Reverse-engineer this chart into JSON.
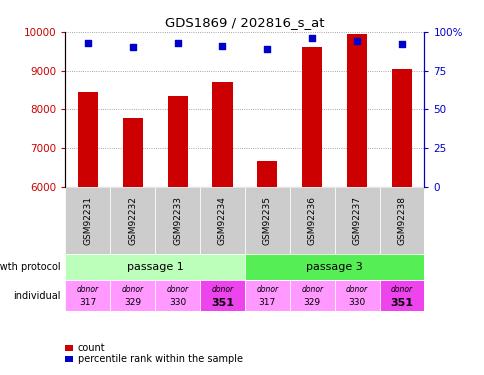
{
  "title": "GDS1869 / 202816_s_at",
  "samples": [
    "GSM92231",
    "GSM92232",
    "GSM92233",
    "GSM92234",
    "GSM92235",
    "GSM92236",
    "GSM92237",
    "GSM92238"
  ],
  "counts": [
    8450,
    7780,
    8350,
    8720,
    6670,
    9620,
    9950,
    9050
  ],
  "percentiles": [
    93,
    90,
    93,
    91,
    89,
    96,
    94,
    92
  ],
  "ylim_left": [
    6000,
    10000
  ],
  "ylim_right": [
    0,
    100
  ],
  "yticks_left": [
    6000,
    7000,
    8000,
    9000,
    10000
  ],
  "yticks_right": [
    0,
    25,
    50,
    75,
    100
  ],
  "individual": [
    "317",
    "329",
    "330",
    "351",
    "317",
    "329",
    "330",
    "351"
  ],
  "individual_highlight": [
    false,
    false,
    false,
    true,
    false,
    false,
    false,
    true
  ],
  "passage1_color": "#bbffbb",
  "passage3_color": "#55ee55",
  "individual_color_normal": "#ff99ff",
  "individual_color_highlight": "#ee44ee",
  "sample_box_color": "#cccccc",
  "bar_color": "#cc0000",
  "dot_color": "#0000cc",
  "grid_color": "#888888",
  "left_axis_color": "#cc0000",
  "right_axis_color": "#0000cc",
  "arrow_color": "#888888"
}
